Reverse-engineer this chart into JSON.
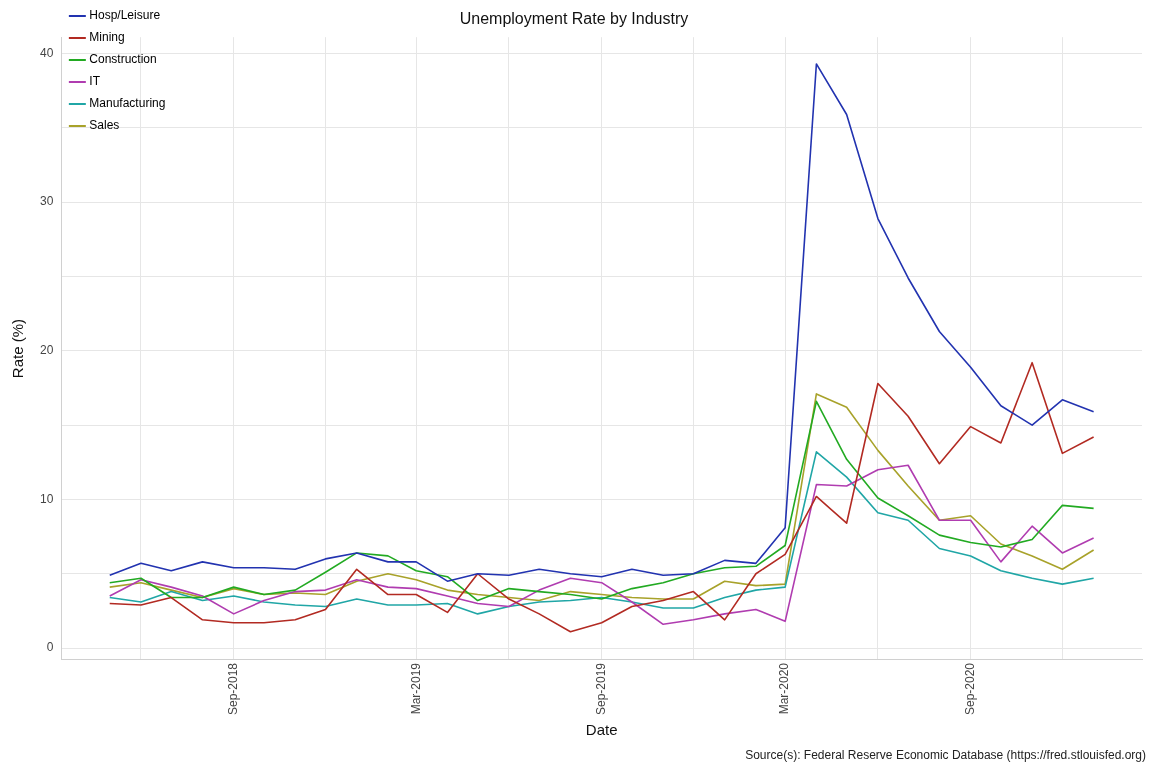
{
  "chart_data": {
    "type": "line",
    "title": "Unemployment Rate by Industry",
    "xlabel": "Date",
    "ylabel": "Rate (%)",
    "x": [
      "2018-05",
      "2018-06",
      "2018-07",
      "2018-08",
      "2018-09",
      "2018-10",
      "2018-11",
      "2018-12",
      "2019-01",
      "2019-02",
      "2019-03",
      "2019-04",
      "2019-05",
      "2019-06",
      "2019-07",
      "2019-08",
      "2019-09",
      "2019-10",
      "2019-11",
      "2019-12",
      "2020-01",
      "2020-02",
      "2020-03",
      "2020-04",
      "2020-05",
      "2020-06",
      "2020-07",
      "2020-08",
      "2020-09",
      "2020-10",
      "2020-11",
      "2020-12",
      "2021-01"
    ],
    "series": [
      {
        "name": "Hosp/Leisure",
        "color": "#2233b0",
        "values": [
          4.9,
          5.7,
          5.2,
          5.8,
          5.4,
          5.4,
          5.3,
          6.0,
          6.4,
          5.8,
          5.8,
          4.5,
          5.0,
          4.9,
          5.3,
          5.0,
          4.8,
          5.3,
          4.9,
          5.0,
          5.9,
          5.7,
          8.1,
          39.3,
          35.9,
          28.9,
          24.9,
          21.3,
          18.9,
          16.3,
          15.0,
          16.7,
          15.9
        ]
      },
      {
        "name": "Mining",
        "color": "#b22a22",
        "values": [
          3.0,
          2.9,
          3.4,
          1.9,
          1.7,
          1.7,
          1.9,
          2.6,
          5.3,
          3.6,
          3.6,
          2.4,
          5.0,
          3.3,
          2.3,
          1.1,
          1.7,
          2.8,
          3.2,
          3.8,
          1.9,
          5.0,
          6.3,
          10.2,
          8.4,
          17.8,
          15.6,
          12.4,
          14.9,
          13.8,
          19.2,
          13.1,
          14.2
        ]
      },
      {
        "name": "Construction",
        "color": "#22aa22",
        "values": [
          4.4,
          4.7,
          3.4,
          3.4,
          4.1,
          3.6,
          3.9,
          5.1,
          6.4,
          6.2,
          5.2,
          4.8,
          3.2,
          4.0,
          3.8,
          3.6,
          3.3,
          4.0,
          4.4,
          5.0,
          5.4,
          5.5,
          6.9,
          16.6,
          12.7,
          10.1,
          8.9,
          7.6,
          7.1,
          6.8,
          7.3,
          9.6,
          9.4
        ]
      },
      {
        "name": "IT",
        "color": "#b03cb0",
        "values": [
          3.5,
          4.6,
          4.1,
          3.5,
          2.3,
          3.2,
          3.8,
          3.9,
          4.6,
          4.1,
          4.0,
          3.5,
          3.0,
          2.8,
          3.9,
          4.7,
          4.4,
          3.1,
          1.6,
          1.9,
          2.3,
          2.6,
          1.8,
          11.0,
          10.9,
          12.0,
          12.3,
          8.6,
          8.6,
          5.8,
          8.2,
          6.4,
          7.4
        ]
      },
      {
        "name": "Manufacturing",
        "color": "#20a6a6",
        "values": [
          3.4,
          3.1,
          3.8,
          3.2,
          3.5,
          3.1,
          2.9,
          2.8,
          3.3,
          2.9,
          2.9,
          3.0,
          2.3,
          2.8,
          3.1,
          3.2,
          3.4,
          3.1,
          2.7,
          2.7,
          3.4,
          3.9,
          4.1,
          13.2,
          11.5,
          9.1,
          8.6,
          6.7,
          6.2,
          5.2,
          4.7,
          4.3,
          4.7
        ]
      },
      {
        "name": "Sales",
        "color": "#a8a22a",
        "values": [
          4.1,
          4.4,
          3.9,
          3.4,
          4.0,
          3.6,
          3.7,
          3.6,
          4.5,
          5.0,
          4.6,
          3.9,
          3.6,
          3.4,
          3.2,
          3.8,
          3.6,
          3.4,
          3.3,
          3.3,
          4.5,
          4.2,
          4.3,
          17.1,
          16.2,
          13.3,
          10.9,
          8.6,
          8.9,
          7.0,
          6.2,
          5.3,
          6.6
        ]
      }
    ],
    "xlim": [
      "2018-03-14",
      "2021-02-18"
    ],
    "xticks": [
      {
        "value": "2018-06-01",
        "label": null
      },
      {
        "value": "2018-09-01",
        "label": "Sep-2018"
      },
      {
        "value": "2018-12-01",
        "label": null
      },
      {
        "value": "2019-03-01",
        "label": "Mar-2019"
      },
      {
        "value": "2019-06-01",
        "label": null
      },
      {
        "value": "2019-09-01",
        "label": "Sep-2019"
      },
      {
        "value": "2019-12-01",
        "label": null
      },
      {
        "value": "2020-03-01",
        "label": "Mar-2020"
      },
      {
        "value": "2020-06-01",
        "label": null
      },
      {
        "value": "2020-09-01",
        "label": "Sep-2020"
      },
      {
        "value": "2020-12-01",
        "label": null
      }
    ],
    "ylim": [
      -0.8,
      41.1
    ],
    "yticks": [
      0,
      {
        "value": 5,
        "label": null
      },
      10,
      {
        "value": 15,
        "label": null
      },
      20,
      {
        "value": 25,
        "label": null
      },
      30,
      {
        "value": 35,
        "label": null
      },
      40
    ],
    "grid": true,
    "legend": "top left",
    "marker": "none",
    "line_style": "solid",
    "annotations": [
      "Source(s): Federal Reserve Economic Database (https://fred.stlouisfed.org)"
    ]
  }
}
